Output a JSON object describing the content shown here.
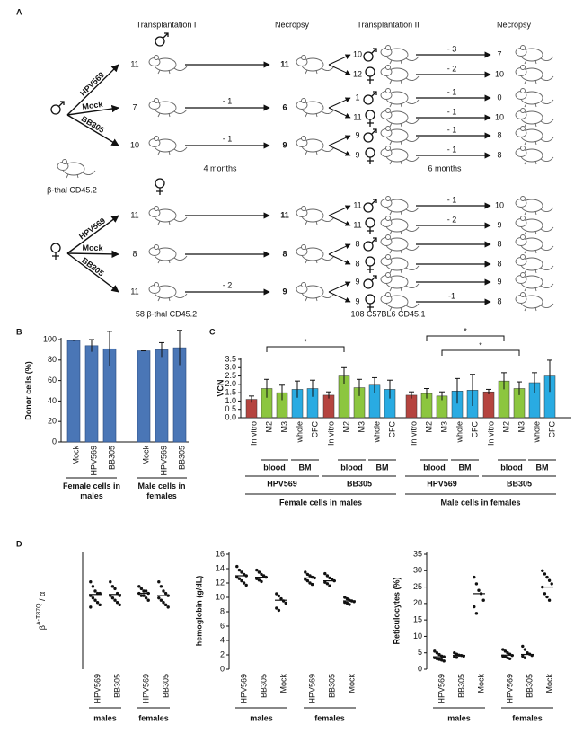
{
  "panel_a": {
    "label": "A",
    "headers": [
      "Transplantation I",
      "Necropsy",
      "Transplantation II",
      "Necropsy"
    ],
    "donor": "β-thal CD45.2",
    "durations": [
      "4 months",
      "6 months"
    ],
    "recipients": [
      "58 β-thal CD45.2",
      "108 C57BL6 CD45.1"
    ],
    "groups": [
      {
        "rows": [
          {
            "vector": "HPV569",
            "n": 11,
            "necropsy": 11,
            "secondary": [
              {
                "n": 10,
                "loss": "- 3",
                "final": 7
              },
              {
                "n": 12,
                "loss": "- 2",
                "final": 10
              }
            ]
          },
          {
            "vector": "Mock",
            "n": 7,
            "loss": "- 1",
            "necropsy": 6,
            "secondary": [
              {
                "n": 1,
                "loss": "- 1",
                "final": 0
              },
              {
                "n": 11,
                "loss": "- 1",
                "final": 10
              }
            ]
          },
          {
            "vector": "BB305",
            "n": 10,
            "loss": "- 1",
            "necropsy": 9,
            "secondary": [
              {
                "n": 9,
                "loss": "- 1",
                "final": 8
              },
              {
                "n": 9,
                "loss": "- 1",
                "final": 8
              }
            ]
          }
        ]
      },
      {
        "rows": [
          {
            "vector": "HPV569",
            "n": 11,
            "necropsy": 11,
            "secondary": [
              {
                "n": 11,
                "loss": "- 1",
                "final": 10
              },
              {
                "n": 11,
                "loss": "- 2",
                "final": 9
              }
            ]
          },
          {
            "vector": "Mock",
            "n": 8,
            "necropsy": 8,
            "secondary": [
              {
                "n": 8,
                "final": 8
              },
              {
                "n": 8,
                "final": 8
              }
            ]
          },
          {
            "vector": "BB305",
            "n": 11,
            "loss": "- 2",
            "necropsy": 9,
            "secondary": [
              {
                "n": 9,
                "final": 9
              },
              {
                "n": 9,
                "loss": "-1",
                "final": 8
              }
            ]
          }
        ]
      }
    ]
  },
  "chart_data": [
    {
      "type": "bar",
      "panel": "B",
      "ylabel": "Donor cells (%)",
      "categories": [
        "Mock",
        "HPV569",
        "BB305",
        "Mock",
        "HPV569",
        "BB305"
      ],
      "values": [
        99,
        94,
        91,
        89,
        90,
        92
      ],
      "errors": [
        0.5,
        6,
        17,
        0,
        7,
        17
      ],
      "group_labels": [
        "Female cells in males",
        "Male cells in females"
      ],
      "color": "#4a76b6",
      "ylim": [
        0,
        100
      ],
      "yticks": [
        0,
        20,
        40,
        60,
        80,
        100
      ]
    },
    {
      "type": "bar",
      "panel": "C",
      "ylabel": "VCN",
      "categories": [
        "In vitro",
        "M2",
        "M3",
        "whole",
        "CFC",
        "In vitro",
        "M2",
        "M3",
        "whole",
        "CFC",
        "In vitro",
        "M2",
        "M3",
        "whole",
        "CFC",
        "In vitro",
        "M2",
        "M3",
        "whole",
        "CFC"
      ],
      "values": [
        1.1,
        1.75,
        1.5,
        1.7,
        1.75,
        1.35,
        2.5,
        1.8,
        1.95,
        1.7,
        1.35,
        1.45,
        1.3,
        1.6,
        1.65,
        1.55,
        2.2,
        1.75,
        2.1,
        2.5
      ],
      "errors": [
        0.2,
        0.55,
        0.45,
        0.5,
        0.5,
        0.2,
        0.5,
        0.5,
        0.45,
        0.55,
        0.2,
        0.3,
        0.25,
        0.75,
        0.95,
        0.15,
        0.5,
        0.4,
        0.6,
        0.95
      ],
      "colors": [
        "#b5443f",
        "#8cc63f",
        "#8cc63f",
        "#29abe2",
        "#29abe2",
        "#b5443f",
        "#8cc63f",
        "#8cc63f",
        "#29abe2",
        "#29abe2",
        "#b5443f",
        "#8cc63f",
        "#8cc63f",
        "#29abe2",
        "#29abe2",
        "#b5443f",
        "#8cc63f",
        "#8cc63f",
        "#29abe2",
        "#29abe2"
      ],
      "subgroup_labels": [
        "blood",
        "BM",
        "blood",
        "BM",
        "blood",
        "BM",
        "blood",
        "BM"
      ],
      "vector_labels": [
        "HPV569",
        "BB305",
        "HPV569",
        "BB305"
      ],
      "group_labels": [
        "Female cells in males",
        "Male cells in females"
      ],
      "annotations": [
        "*",
        "*",
        "*"
      ],
      "ylim": [
        0,
        3.5
      ],
      "yticks": [
        {
          "value": 0,
          "label": "0.0"
        },
        0.5,
        {
          "value": 1,
          "label": "1.0"
        },
        1.5,
        {
          "value": 2,
          "label": "2.0"
        },
        2.5,
        {
          "value": 3,
          "label": "3.0"
        },
        3.5
      ]
    },
    {
      "type": "dot",
      "panel": "D",
      "ylabel": "β",
      "ylabel_sup": "A-T87Q",
      "ylabel_tail": " / α",
      "categories": [
        "HPV569",
        "BB305",
        "HPV569",
        "BB305"
      ],
      "group_labels": [
        "males",
        "females"
      ],
      "points": [
        [
          38,
          36,
          34,
          33,
          33,
          32,
          31,
          30,
          29,
          28,
          27
        ],
        [
          38,
          36,
          35,
          33,
          32,
          32,
          31,
          30,
          29,
          28
        ],
        [
          36,
          35,
          34,
          34,
          33,
          33,
          32,
          32,
          31,
          30
        ],
        [
          38,
          36,
          34,
          33,
          32,
          31,
          30,
          29,
          28,
          27
        ]
      ],
      "means": [
        32.5,
        32.5,
        33,
        32
      ],
      "ylim": [
        0,
        50
      ]
    },
    {
      "type": "dot",
      "ylabel": "hemoglobin (g/dL)",
      "categories": [
        "HPV569",
        "BB305",
        "Mock",
        "HPV569",
        "BB305",
        "Mock"
      ],
      "group_labels": [
        "males",
        "females"
      ],
      "points": [
        [
          14.3,
          13.8,
          13.5,
          13.2,
          13,
          12.8,
          12.6,
          12.3,
          12,
          11.7
        ],
        [
          13.8,
          13.5,
          13.2,
          13,
          12.8,
          12.6,
          12.4,
          12.2
        ],
        [
          10.5,
          10.2,
          9.8,
          9.5,
          9.2,
          8.5,
          8.2
        ],
        [
          13.5,
          13.2,
          13,
          12.8,
          12.7,
          12.5,
          12.3,
          12,
          11.8
        ],
        [
          13.3,
          13,
          12.7,
          12.5,
          12.3,
          12.1,
          11.9,
          11.6
        ],
        [
          10,
          9.8,
          9.6,
          9.5,
          9.4,
          9.3,
          9.2,
          9
        ]
      ],
      "means": [
        13,
        12.8,
        9.6,
        12.7,
        12.3,
        9.5
      ],
      "ylim": [
        0,
        16
      ],
      "yticks": [
        0,
        2,
        4,
        6,
        8,
        10,
        12,
        14,
        16
      ]
    },
    {
      "type": "dot",
      "ylabel": "Reticulocytes (%)",
      "categories": [
        "HPV569",
        "BB305",
        "Mock",
        "HPV569",
        "BB305",
        "Mock"
      ],
      "group_labels": [
        "males",
        "females"
      ],
      "points": [
        [
          5.5,
          5,
          4.5,
          4,
          3.8,
          3.5,
          3.2,
          3,
          2.8,
          2.5
        ],
        [
          5,
          4.6,
          4.3,
          4.2,
          4,
          3.8,
          3.6
        ],
        [
          28,
          26,
          24,
          23,
          21,
          19,
          17
        ],
        [
          6,
          5.5,
          5,
          4.6,
          4.2,
          4,
          3.8,
          3.5,
          3.2
        ],
        [
          7,
          6,
          5,
          4.6,
          4.2,
          4,
          3.5
        ],
        [
          30,
          29,
          28,
          27,
          26,
          25,
          23,
          22,
          21
        ]
      ],
      "means": [
        3.8,
        4.2,
        23,
        4.3,
        4.5,
        25
      ],
      "ylim": [
        0,
        35
      ],
      "yticks": [
        0,
        5,
        10,
        15,
        20,
        25,
        30,
        35
      ]
    }
  ]
}
